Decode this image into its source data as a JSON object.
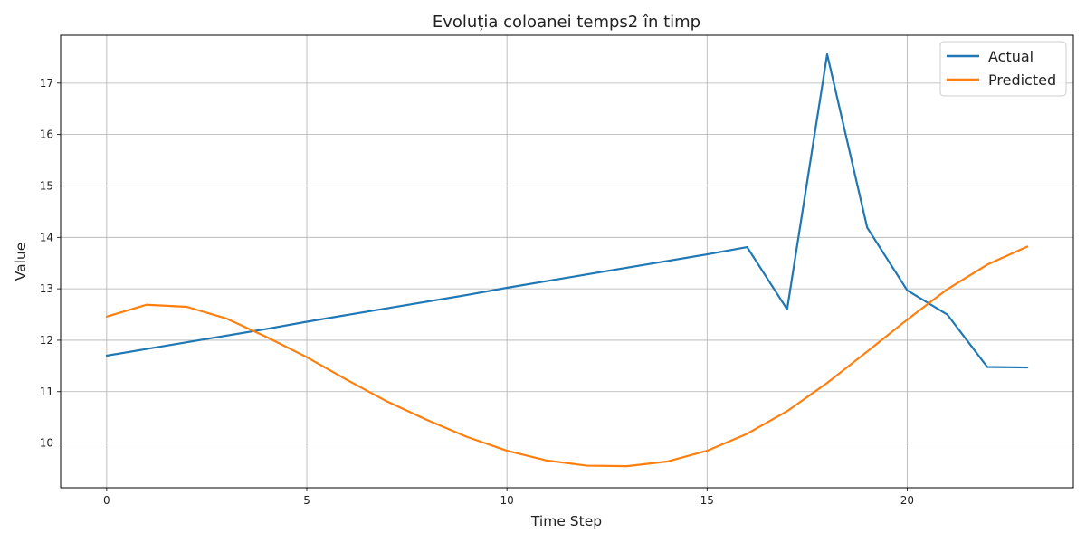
{
  "chart_data": {
    "type": "line",
    "title": "Evoluția coloanei temps2 în timp",
    "xlabel": "Time Step",
    "ylabel": "Value",
    "xlim": [
      -1.15,
      24.15
    ],
    "ylim": [
      9.13,
      17.93
    ],
    "xticks": [
      0,
      5,
      10,
      15,
      20
    ],
    "yticks": [
      10,
      11,
      12,
      13,
      14,
      15,
      16,
      17
    ],
    "grid": true,
    "legend_position": "top-right",
    "x": [
      0,
      1,
      2,
      3,
      4,
      5,
      6,
      7,
      8,
      9,
      10,
      11,
      12,
      13,
      14,
      15,
      16,
      17,
      18,
      19,
      20,
      21,
      22,
      23
    ],
    "series": [
      {
        "name": "Actual",
        "color": "#1f77b4",
        "values": [
          11.7,
          11.83,
          11.96,
          12.09,
          12.22,
          12.36,
          12.49,
          12.62,
          12.75,
          12.88,
          13.02,
          13.15,
          13.28,
          13.41,
          13.54,
          13.67,
          13.81,
          12.6,
          17.56,
          14.19,
          12.97,
          12.5,
          11.48,
          11.47
        ]
      },
      {
        "name": "Predicted",
        "color": "#ff7f0e",
        "values": [
          12.46,
          12.69,
          12.65,
          12.42,
          12.06,
          11.67,
          11.23,
          10.81,
          10.45,
          10.12,
          9.85,
          9.66,
          9.56,
          9.55,
          9.64,
          9.85,
          10.18,
          10.62,
          11.17,
          11.78,
          12.4,
          12.99,
          13.47,
          13.82
        ]
      }
    ]
  }
}
